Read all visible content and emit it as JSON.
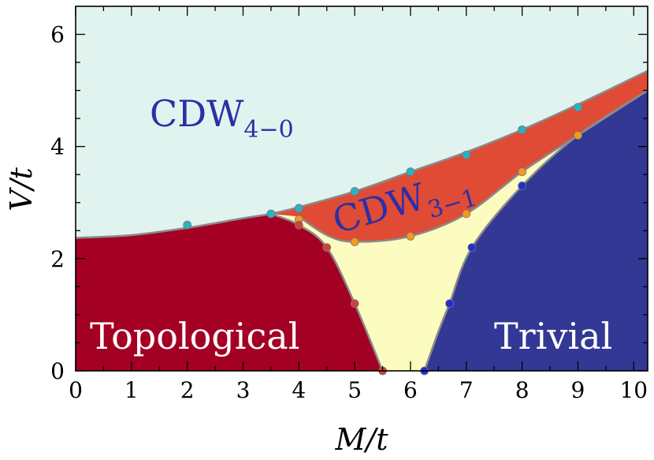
{
  "chart_data": {
    "type": "area",
    "title": "",
    "xlabel": "M/t",
    "ylabel": "V/t",
    "xlim": [
      0,
      10.25
    ],
    "ylim": [
      0,
      6.5
    ],
    "xticks": [
      0,
      1,
      2,
      3,
      4,
      5,
      6,
      7,
      8,
      9,
      10
    ],
    "yticks": [
      0,
      2,
      4,
      6
    ],
    "grid": false,
    "legend": "none",
    "regions": [
      {
        "name": "CDW",
        "subscript": "4−0",
        "color": "#e1f3ee",
        "label_text_color": "#2b2fa8"
      },
      {
        "name": "CDW",
        "subscript": "3−1",
        "color": "#e04b35",
        "label_text_color": "#2b2fa8"
      },
      {
        "name": "Topological",
        "subscript": "",
        "color": "#a30024",
        "label_text_color": "#ffffff"
      },
      {
        "name": "Trivial",
        "subscript": "",
        "color": "#323894",
        "label_text_color": "#ffffff"
      },
      {
        "name": "",
        "subscript": "",
        "color": "#fdfcc0",
        "label_text_color": ""
      }
    ],
    "boundaries": {
      "upper_cdw40": [
        [
          0,
          2.37
        ],
        [
          1,
          2.42
        ],
        [
          2,
          2.55
        ],
        [
          3,
          2.72
        ],
        [
          3.5,
          2.8
        ],
        [
          4,
          2.92
        ],
        [
          5,
          3.2
        ],
        [
          6,
          3.55
        ],
        [
          7,
          3.9
        ],
        [
          8,
          4.3
        ],
        [
          9,
          4.75
        ],
        [
          10.25,
          5.35
        ]
      ],
      "lower_cdw31": [
        [
          4,
          2.75
        ],
        [
          4.5,
          2.42
        ],
        [
          5,
          2.3
        ],
        [
          6,
          2.4
        ],
        [
          7,
          2.8
        ],
        [
          8,
          3.55
        ],
        [
          9,
          4.2
        ],
        [
          10.25,
          5.0
        ]
      ],
      "topo_yellow": [
        [
          3.5,
          2.8
        ],
        [
          4,
          2.6
        ],
        [
          4.5,
          2.2
        ],
        [
          5,
          1.2
        ],
        [
          5.5,
          0
        ]
      ],
      "trivial_yellow": [
        [
          6.25,
          0
        ],
        [
          6.5,
          0.7
        ],
        [
          6.7,
          1.2
        ],
        [
          7.1,
          2.2
        ],
        [
          8,
          3.3
        ],
        [
          9,
          4.2
        ],
        [
          10.25,
          5.0
        ]
      ]
    },
    "series": [
      {
        "marker": "upper",
        "color": "#26b4c4",
        "points": [
          [
            2,
            2.6
          ],
          [
            3.5,
            2.8
          ],
          [
            4,
            2.9
          ],
          [
            5,
            3.2
          ],
          [
            6,
            3.55
          ],
          [
            7,
            3.85
          ],
          [
            8,
            4.3
          ],
          [
            9,
            4.7
          ]
        ]
      },
      {
        "marker": "lower",
        "color": "#f39a1e",
        "points": [
          [
            4,
            2.7
          ],
          [
            5,
            2.3
          ],
          [
            6,
            2.4
          ],
          [
            7,
            2.8
          ],
          [
            8,
            3.55
          ],
          [
            9,
            4.2
          ]
        ]
      },
      {
        "marker": "topological",
        "color": "#d3403c",
        "points": [
          [
            4,
            2.6
          ],
          [
            4.5,
            2.2
          ],
          [
            5,
            1.2
          ],
          [
            5.5,
            0
          ]
        ]
      },
      {
        "marker": "trivial",
        "color": "#1f2fd6",
        "points": [
          [
            6.25,
            0
          ],
          [
            6.7,
            1.2
          ],
          [
            7.1,
            2.2
          ],
          [
            8,
            3.3
          ]
        ]
      }
    ]
  }
}
